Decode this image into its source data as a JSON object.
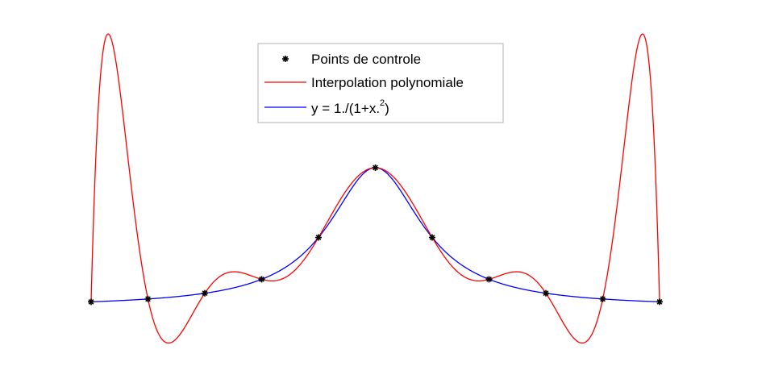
{
  "chart_data": {
    "type": "line",
    "title": "",
    "xlabel": "",
    "ylabel": "",
    "xlim": [
      -5,
      5
    ],
    "ylim": [
      -0.45,
      2.0
    ],
    "axes_visible": false,
    "grid": false,
    "legend_position": "top-center",
    "series": [
      {
        "name": "Points de controle",
        "kind": "markers",
        "color": "#000000",
        "x": [
          -5,
          -4,
          -3,
          -2,
          -1,
          0,
          1,
          2,
          3,
          4,
          5
        ],
        "y": [
          0.0385,
          0.0588,
          0.1,
          0.2,
          0.5,
          1.0,
          0.5,
          0.2,
          0.1,
          0.0588,
          0.0385
        ]
      },
      {
        "name": "Interpolation polynomiale",
        "kind": "line",
        "color": "#ff0000",
        "function": "lagrange_interpolant_of_control_points"
      },
      {
        "name": "y = 1./(1+x.",
        "name_sup": "2",
        "name_tail": ")",
        "kind": "line",
        "color": "#0000ff",
        "function": "1/(1+x^2)"
      }
    ]
  }
}
